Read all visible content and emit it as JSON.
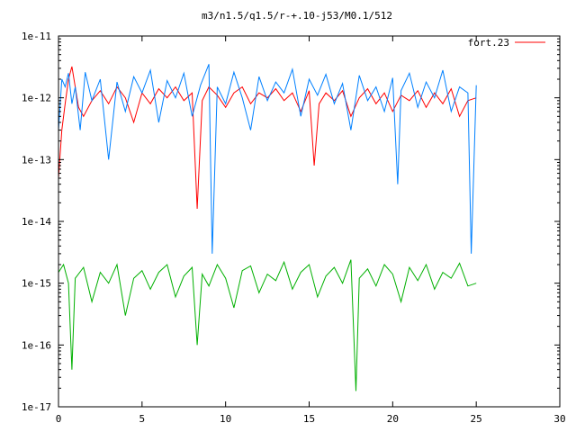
{
  "chart_data": {
    "type": "line",
    "title": "m3/n1.5/q1.5/r-+.10-j53/M0.1/512",
    "xlabel": "",
    "ylabel": "",
    "xlim": [
      0,
      30
    ],
    "ylim": [
      1e-17,
      1e-11
    ],
    "yscale": "log",
    "x_ticks": [
      0,
      5,
      10,
      15,
      20,
      25,
      30
    ],
    "x_tick_labels": [
      "0",
      "5",
      "10",
      "15",
      "20",
      "25",
      "30"
    ],
    "y_ticks": [
      1e-17,
      1e-16,
      1e-15,
      1e-14,
      1e-13,
      1e-12,
      1e-11
    ],
    "y_tick_labels": [
      "1e-17",
      "1e-16",
      "1e-15",
      "1e-14",
      "1e-13",
      "1e-12",
      "1e-11"
    ],
    "grid": false,
    "legend_position": "top-right",
    "series": [
      {
        "name": "fort.23",
        "color": "#ff0000",
        "x": [
          0.0,
          0.2,
          0.4,
          0.6,
          0.8,
          1.0,
          1.2,
          1.5,
          2.0,
          2.5,
          3.0,
          3.5,
          4.0,
          4.5,
          5.0,
          5.5,
          6.0,
          6.5,
          7.0,
          7.5,
          8.0,
          8.3,
          8.6,
          9.0,
          9.5,
          10.0,
          10.5,
          11.0,
          11.5,
          12.0,
          12.5,
          13.0,
          13.5,
          14.0,
          14.5,
          15.0,
          15.3,
          15.6,
          16.0,
          16.5,
          17.0,
          17.5,
          18.0,
          18.5,
          19.0,
          19.5,
          20.0,
          20.5,
          21.0,
          21.5,
          22.0,
          22.5,
          23.0,
          23.5,
          24.0,
          24.5,
          25.0
        ],
        "y": [
          5e-14,
          3e-13,
          8e-13,
          2e-12,
          3.2e-12,
          1.5e-12,
          7e-13,
          5e-13,
          9e-13,
          1.3e-12,
          8e-13,
          1.5e-12,
          1e-12,
          4e-13,
          1.2e-12,
          8e-13,
          1.4e-12,
          1e-12,
          1.5e-12,
          9e-13,
          1.2e-12,
          1.6e-14,
          9e-13,
          1.5e-12,
          1.1e-12,
          7e-13,
          1.2e-12,
          1.5e-12,
          8e-13,
          1.2e-12,
          1e-12,
          1.4e-12,
          9e-13,
          1.2e-12,
          6e-13,
          1.3e-12,
          8e-14,
          8e-13,
          1.2e-12,
          9e-13,
          1.3e-12,
          5e-13,
          1e-12,
          1.4e-12,
          8e-13,
          1.2e-12,
          6e-13,
          1.1e-12,
          9e-13,
          1.3e-12,
          7e-13,
          1.2e-12,
          8e-13,
          1.4e-12,
          5e-13,
          9e-13,
          1e-12
        ]
      },
      {
        "name": "",
        "color": "#0080ff",
        "x": [
          0.0,
          0.2,
          0.4,
          0.6,
          0.8,
          1.0,
          1.3,
          1.6,
          2.0,
          2.5,
          3.0,
          3.5,
          4.0,
          4.5,
          5.0,
          5.5,
          6.0,
          6.5,
          7.0,
          7.5,
          8.0,
          8.5,
          9.0,
          9.2,
          9.5,
          10.0,
          10.5,
          11.0,
          11.5,
          12.0,
          12.5,
          13.0,
          13.5,
          14.0,
          14.5,
          15.0,
          15.5,
          16.0,
          16.5,
          17.0,
          17.5,
          18.0,
          18.5,
          19.0,
          19.5,
          20.0,
          20.3,
          20.5,
          21.0,
          21.5,
          22.0,
          22.5,
          23.0,
          23.5,
          24.0,
          24.5,
          24.7,
          25.0
        ],
        "y": [
          3e-13,
          2e-12,
          1.5e-12,
          2.5e-12,
          8e-13,
          1.5e-12,
          3e-13,
          2.6e-12,
          9e-13,
          2e-12,
          1e-13,
          1.8e-12,
          6e-13,
          2.2e-12,
          1.2e-12,
          2.8e-12,
          4e-13,
          1.9e-12,
          1e-12,
          2.5e-12,
          5e-13,
          1.6e-12,
          3.5e-12,
          3e-15,
          1.5e-12,
          8e-13,
          2.6e-12,
          1e-12,
          3e-13,
          2.2e-12,
          9e-13,
          1.8e-12,
          1.2e-12,
          2.9e-12,
          5e-13,
          2e-12,
          1.1e-12,
          2.4e-12,
          8e-13,
          1.7e-12,
          3e-13,
          2.3e-12,
          9e-13,
          1.5e-12,
          6e-13,
          2.1e-12,
          4e-14,
          1.3e-12,
          2.5e-12,
          7e-13,
          1.8e-12,
          1e-12,
          2.8e-12,
          6e-13,
          1.5e-12,
          1.2e-12,
          3e-15,
          1.6e-12
        ]
      },
      {
        "name": "",
        "color": "#00b000",
        "x": [
          0.0,
          0.3,
          0.6,
          0.8,
          1.0,
          1.5,
          2.0,
          2.5,
          3.0,
          3.5,
          4.0,
          4.5,
          5.0,
          5.5,
          6.0,
          6.5,
          7.0,
          7.5,
          8.0,
          8.3,
          8.6,
          9.0,
          9.5,
          10.0,
          10.5,
          11.0,
          11.5,
          12.0,
          12.5,
          13.0,
          13.5,
          14.0,
          14.5,
          15.0,
          15.5,
          16.0,
          16.5,
          17.0,
          17.5,
          17.8,
          18.0,
          18.5,
          19.0,
          19.5,
          20.0,
          20.5,
          21.0,
          21.5,
          22.0,
          22.5,
          23.0,
          23.5,
          24.0,
          24.5,
          25.0
        ],
        "y": [
          1.5e-15,
          2e-15,
          1e-15,
          4e-17,
          1.2e-15,
          1.8e-15,
          5e-16,
          1.5e-15,
          1e-15,
          2e-15,
          3e-16,
          1.2e-15,
          1.6e-15,
          8e-16,
          1.5e-15,
          2e-15,
          6e-16,
          1.3e-15,
          1.8e-15,
          1e-16,
          1.4e-15,
          9e-16,
          2e-15,
          1.2e-15,
          4e-16,
          1.6e-15,
          1.9e-15,
          7e-16,
          1.4e-15,
          1.1e-15,
          2.2e-15,
          8e-16,
          1.5e-15,
          2e-15,
          6e-16,
          1.3e-15,
          1.8e-15,
          1e-15,
          2.4e-15,
          1.8e-17,
          1.2e-15,
          1.7e-15,
          9e-16,
          2e-15,
          1.4e-15,
          5e-16,
          1.8e-15,
          1.1e-15,
          2e-15,
          8e-16,
          1.5e-15,
          1.2e-15,
          2.1e-15,
          9e-16,
          1e-15
        ]
      }
    ]
  }
}
